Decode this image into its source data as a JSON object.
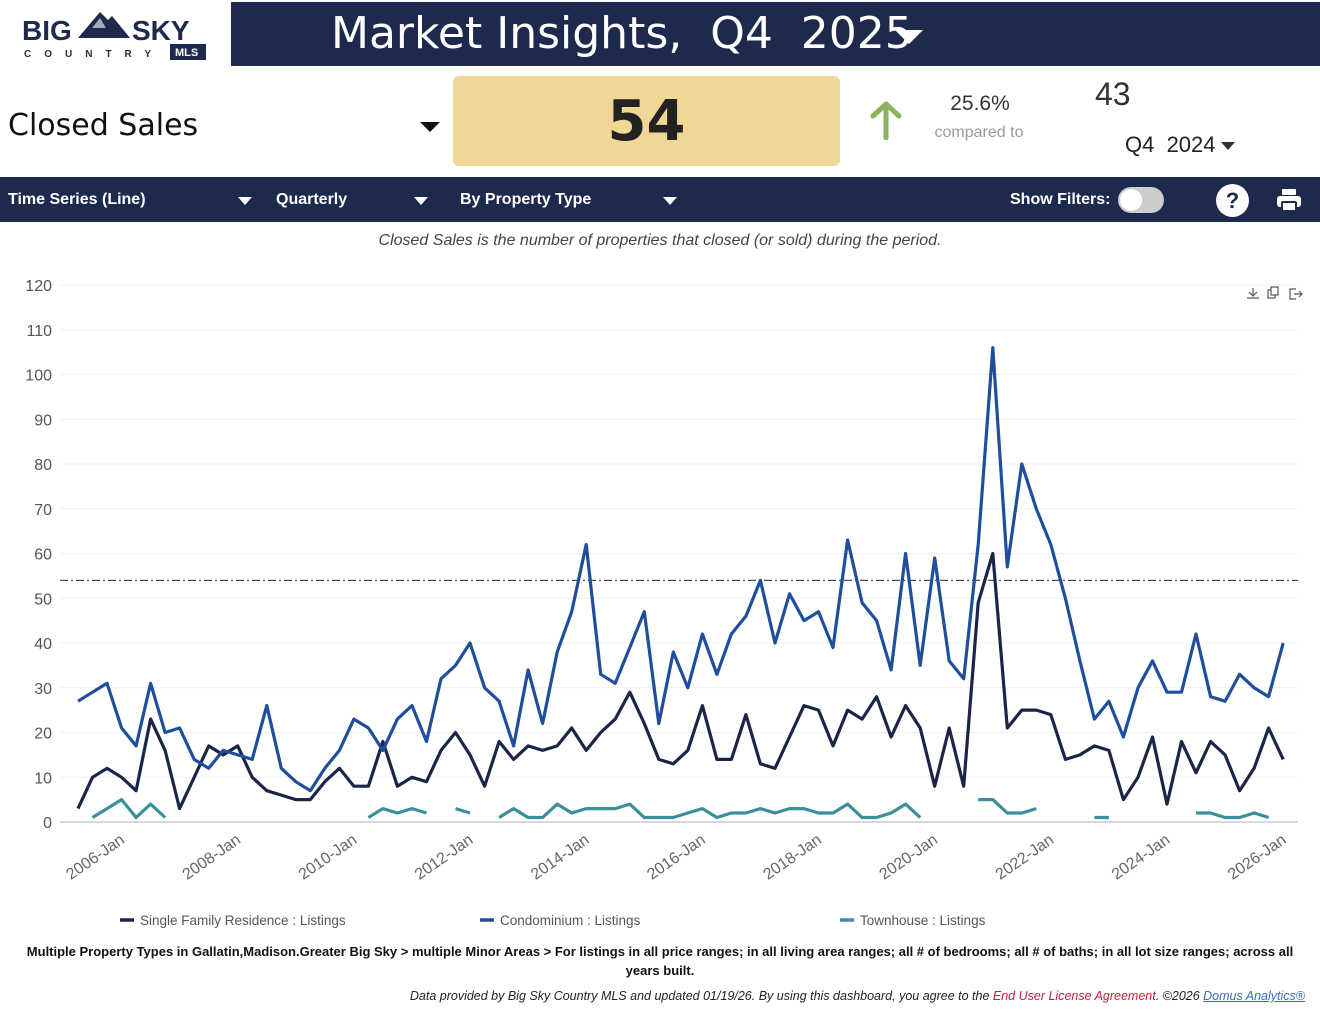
{
  "logo": {
    "line1a": "BIG",
    "line1b": "SKY",
    "line2": "COUNTRY",
    "badge": "MLS"
  },
  "header": {
    "title": "Market Insights,  Q4  2025"
  },
  "metric": {
    "name": "Closed Sales",
    "value": "54",
    "change_pct": "25.6%",
    "compared_label": "compared to",
    "prev_value": "43",
    "prev_period": "Q4  2024",
    "change_direction": "up",
    "arrow_color": "#8ab45a"
  },
  "toolbar": {
    "chart_type": "Time Series (Line)",
    "interval": "Quarterly",
    "grouping": "By Property Type",
    "show_filters_label": "Show Filters:",
    "show_filters_on": false,
    "help": "?"
  },
  "description": "Closed Sales is the number of properties that closed (or sold) during the period.",
  "chart_data": {
    "type": "line",
    "ylim": [
      0,
      120
    ],
    "yticks": [
      0,
      10,
      20,
      30,
      40,
      50,
      60,
      70,
      80,
      90,
      100,
      110,
      120
    ],
    "xtick_labels": [
      "2006-Jan",
      "2008-Jan",
      "2010-Jan",
      "2012-Jan",
      "2014-Jan",
      "2016-Jan",
      "2018-Jan",
      "2020-Jan",
      "2022-Jan",
      "2024-Jan",
      "2026-Jan"
    ],
    "x_start": "2005-Apr",
    "x_interval": "quarter",
    "n_points": 84,
    "reference_line": 54,
    "grid": true,
    "legend_position": "bottom",
    "series": [
      {
        "name": "Single Family Residence : Listings",
        "color": "#1b2548",
        "values": [
          3,
          10,
          12,
          10,
          7,
          23,
          16,
          3,
          10,
          17,
          15,
          17,
          10,
          7,
          6,
          5,
          5,
          9,
          12,
          8,
          8,
          18,
          8,
          10,
          9,
          16,
          20,
          15,
          8,
          18,
          14,
          17,
          16,
          17,
          21,
          16,
          20,
          23,
          29,
          22,
          14,
          13,
          16,
          26,
          14,
          14,
          24,
          13,
          12,
          19,
          26,
          25,
          17,
          25,
          23,
          28,
          19,
          26,
          21,
          8,
          21,
          8,
          49,
          60,
          21,
          25,
          25,
          24,
          14,
          15,
          17,
          16,
          5,
          10,
          19,
          4,
          18,
          11,
          18,
          15,
          7,
          12,
          21,
          14
        ]
      },
      {
        "name": "Condominium : Listings",
        "color": "#1f4e9c",
        "values": [
          27,
          29,
          31,
          21,
          17,
          31,
          20,
          21,
          14,
          12,
          16,
          15,
          14,
          26,
          12,
          9,
          7,
          12,
          16,
          23,
          21,
          16,
          23,
          26,
          18,
          32,
          35,
          40,
          30,
          27,
          17,
          34,
          22,
          38,
          47,
          62,
          33,
          31,
          39,
          47,
          22,
          38,
          30,
          42,
          33,
          42,
          46,
          54,
          40,
          51,
          45,
          47,
          39,
          63,
          49,
          45,
          34,
          60,
          35,
          59,
          36,
          32,
          62,
          106,
          57,
          80,
          70,
          62,
          50,
          36,
          23,
          27,
          19,
          30,
          36,
          29,
          29,
          42,
          28,
          27,
          33,
          30,
          28,
          40
        ]
      },
      {
        "name": "Townhouse : Listings",
        "color": "#3a8f9a",
        "values": [
          null,
          1,
          3,
          5,
          1,
          4,
          1,
          null,
          null,
          null,
          null,
          null,
          null,
          null,
          null,
          null,
          null,
          null,
          null,
          null,
          1,
          3,
          2,
          3,
          2,
          null,
          3,
          2,
          null,
          1,
          3,
          1,
          1,
          4,
          2,
          3,
          3,
          3,
          4,
          1,
          1,
          1,
          2,
          3,
          1,
          2,
          2,
          3,
          2,
          3,
          3,
          2,
          2,
          4,
          1,
          1,
          2,
          4,
          1,
          null,
          null,
          null,
          5,
          5,
          2,
          2,
          3,
          null,
          null,
          null,
          1,
          1,
          null,
          null,
          null,
          null,
          null,
          2,
          2,
          1,
          1,
          2,
          1,
          null
        ]
      }
    ]
  },
  "footnote": "Multiple Property Types in Gallatin,Madison.Greater Big Sky > multiple Minor Areas > For listings in all price ranges; in all living area ranges; all # of bedrooms; all # of baths; in all lot size ranges; across all years built.",
  "credits": {
    "text": "Data provided by Big Sky Country MLS and updated 01/19/26.  By using this dashboard, you agree to the ",
    "eula": "End User License Agreement",
    "copyright": ".  ©2026 ",
    "domus": "Domus Analytics®"
  }
}
